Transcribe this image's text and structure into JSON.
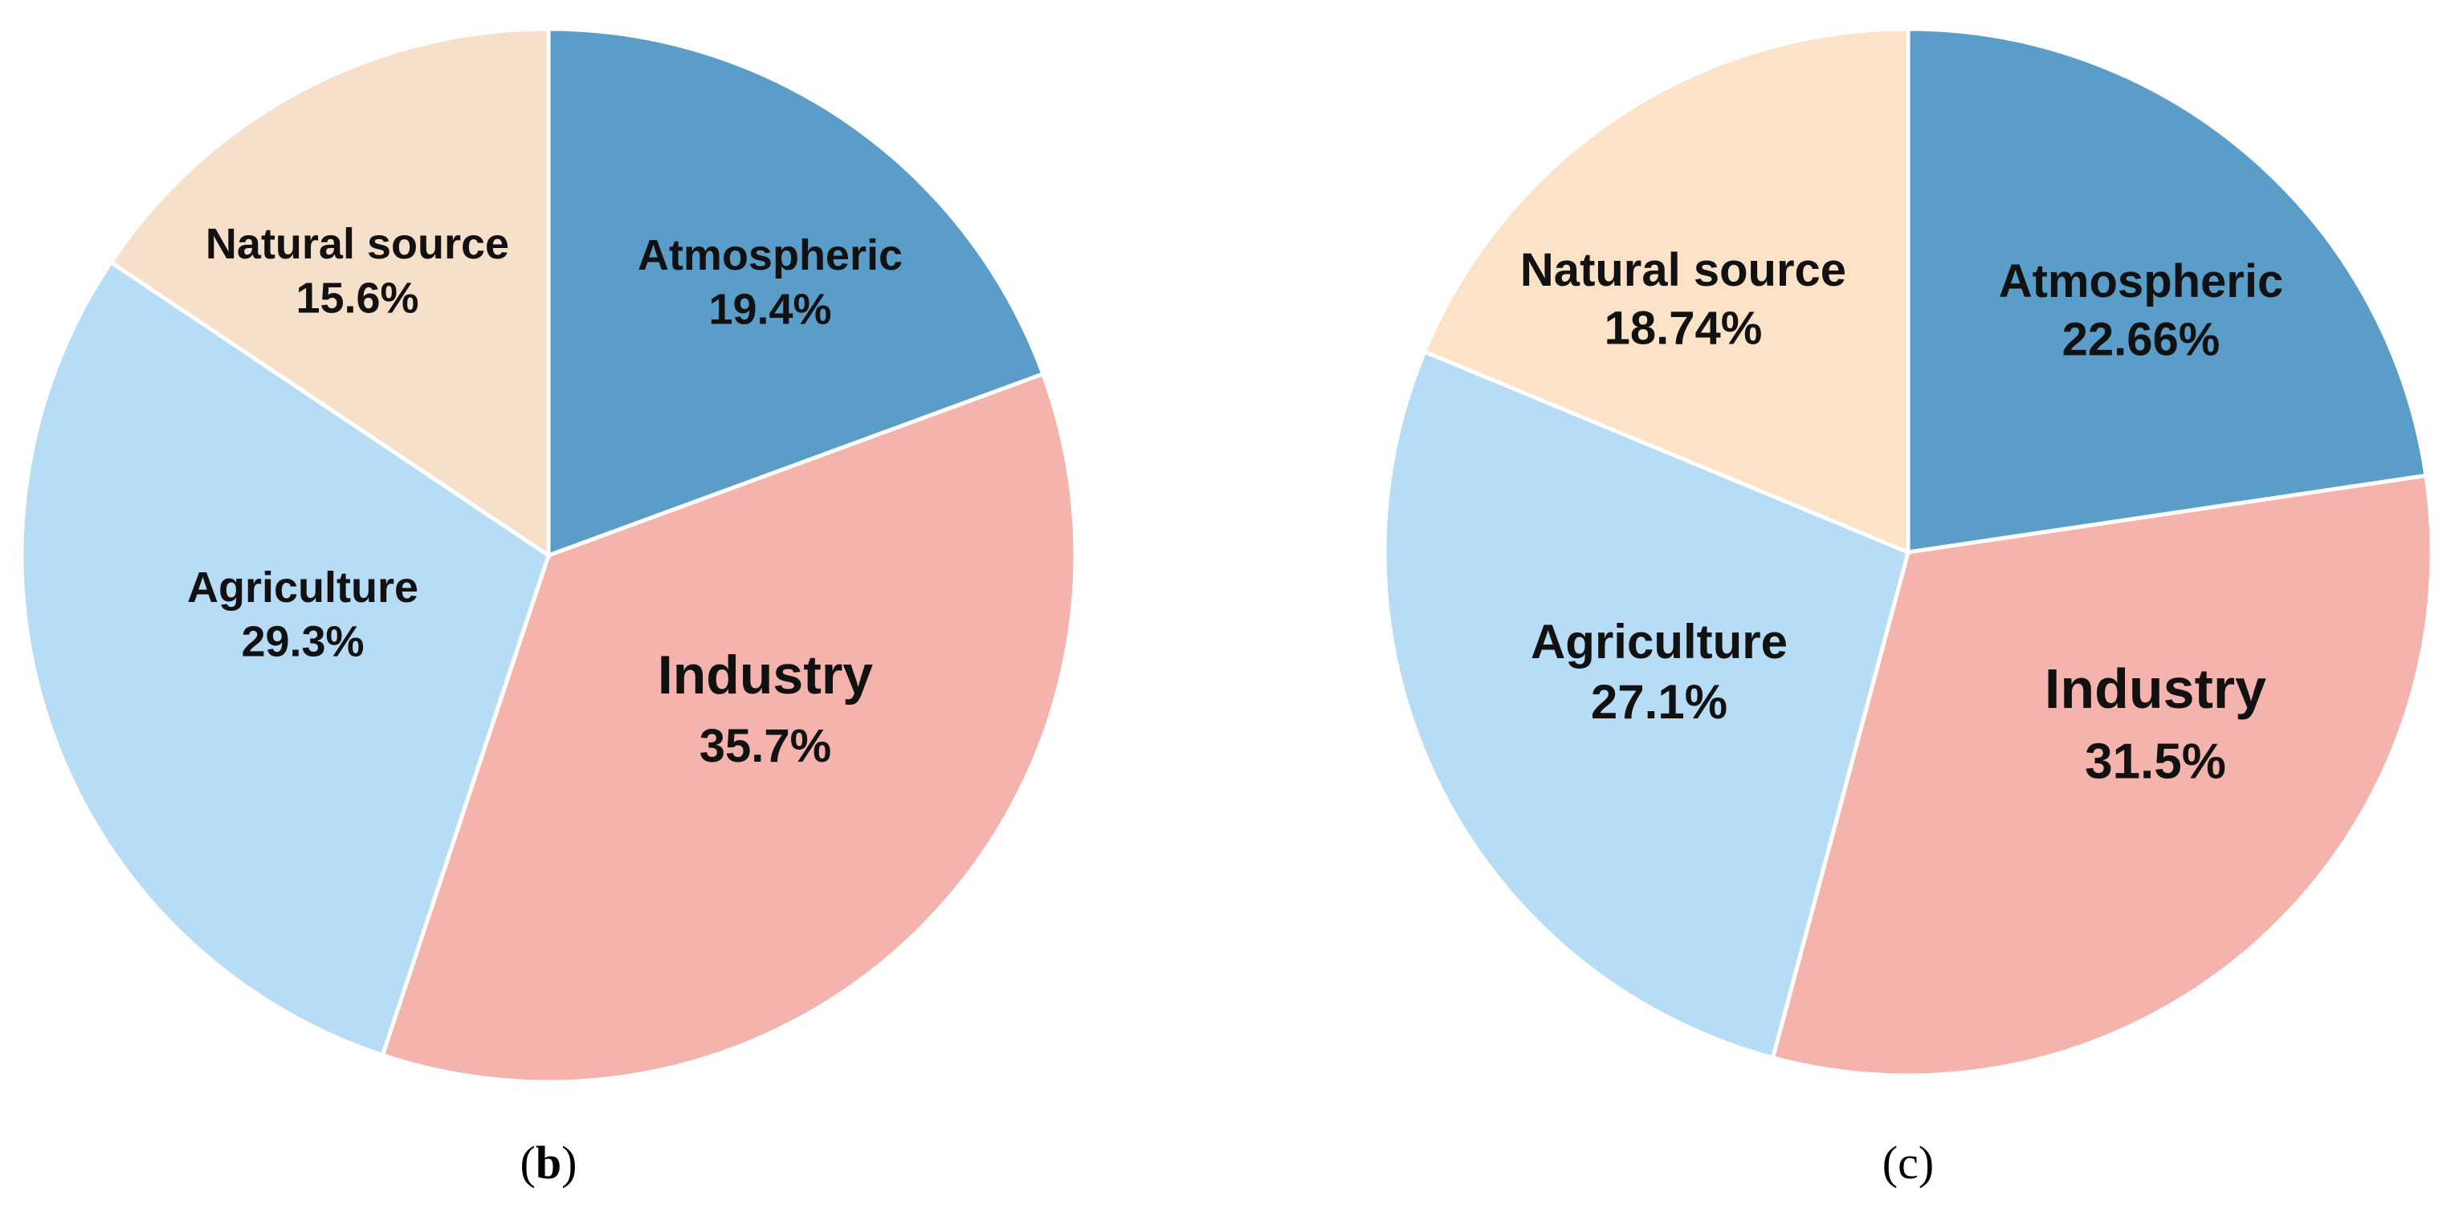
{
  "chart_data": [
    {
      "type": "pie",
      "panel_label": "b",
      "slices": [
        {
          "label": "Atmospheric",
          "value": 19.4,
          "value_label": "19.4%",
          "color": "#5B9DC9"
        },
        {
          "label": "Industry",
          "value": 35.7,
          "value_label": "35.7%",
          "color": "#F4B3AD"
        },
        {
          "label": "Agriculture",
          "value": 29.3,
          "value_label": "29.3%",
          "color": "#B7DDF6"
        },
        {
          "label": "Natural source",
          "value": 15.6,
          "value_label": "15.6%",
          "color": "#F7E0CA"
        }
      ]
    },
    {
      "type": "pie",
      "panel_label": "c",
      "slices": [
        {
          "label": "Atmospheric",
          "value": 22.66,
          "value_label": "22.66%",
          "color": "#5B9DC9"
        },
        {
          "label": "Industry",
          "value": 31.5,
          "value_label": "31.5%",
          "color": "#F4B3AD"
        },
        {
          "label": "Agriculture",
          "value": 27.1,
          "value_label": "27.1%",
          "color": "#B7DDF6"
        },
        {
          "label": "Natural source",
          "value": 18.74,
          "value_label": "18.74%",
          "color": "#FCE3C8"
        }
      ]
    }
  ]
}
